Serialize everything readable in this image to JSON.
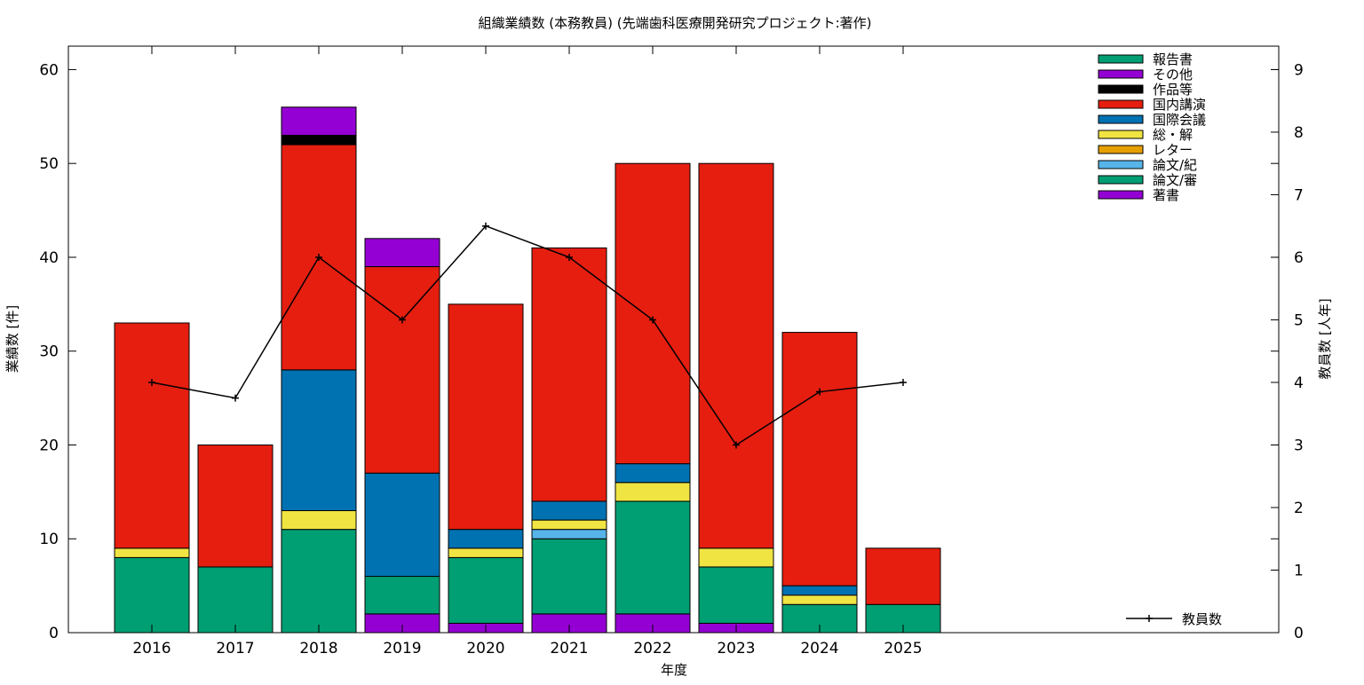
{
  "chart_data": {
    "type": "bar",
    "stacked": true,
    "title": "組織業績数 (本務教員) (先端歯科医療開発研究プロジェクト:著作)",
    "xlabel": "年度",
    "ylabel": "業績数 [件]",
    "y2label": "教員数 [人年]",
    "ylim": [
      0,
      62.5
    ],
    "y2lim": [
      0,
      9.375
    ],
    "yticks": [
      "0",
      "10",
      "20",
      "30",
      "40",
      "50",
      "60"
    ],
    "y2ticks": [
      "0",
      "1",
      "2",
      "3",
      "4",
      "5",
      "6",
      "7",
      "8",
      "9"
    ],
    "categories": [
      "2016",
      "2017",
      "2018",
      "2019",
      "2020",
      "2021",
      "2022",
      "2023",
      "2024",
      "2025"
    ],
    "series": [
      {
        "name": "著書",
        "color": "#9400d3",
        "values": [
          0,
          0,
          0,
          2,
          1,
          2,
          2,
          1,
          0,
          0
        ]
      },
      {
        "name": "論文/審",
        "color": "#009e73",
        "values": [
          8,
          7,
          11,
          4,
          7,
          8,
          12,
          6,
          3,
          3
        ]
      },
      {
        "name": "論文/紀",
        "color": "#56b4e9",
        "values": [
          0,
          0,
          0,
          0,
          0,
          1,
          0,
          0,
          0,
          0
        ]
      },
      {
        "name": "レター",
        "color": "#e69f00",
        "values": [
          0,
          0,
          0,
          0,
          0,
          0,
          0,
          0,
          0,
          0
        ]
      },
      {
        "name": "総・解",
        "color": "#f0e442",
        "values": [
          1,
          0,
          2,
          0,
          1,
          1,
          2,
          2,
          1,
          0
        ]
      },
      {
        "name": "国際会議",
        "color": "#0072b2",
        "values": [
          0,
          0,
          15,
          11,
          2,
          2,
          2,
          0,
          1,
          0
        ]
      },
      {
        "name": "国内講演",
        "color": "#e51e10",
        "values": [
          24,
          13,
          24,
          22,
          24,
          27,
          32,
          41,
          27,
          6
        ]
      },
      {
        "name": "作品等",
        "color": "#000000",
        "values": [
          0,
          0,
          1,
          0,
          0,
          0,
          0,
          0,
          0,
          0
        ]
      },
      {
        "name": "その他",
        "color": "#9400d3",
        "values": [
          0,
          0,
          3,
          3,
          0,
          0,
          0,
          0,
          0,
          0
        ]
      },
      {
        "name": "報告書",
        "color": "#009e73",
        "values": [
          0,
          0,
          0,
          0,
          0,
          0,
          0,
          0,
          0,
          0
        ]
      }
    ],
    "line_series": {
      "name": "教員数",
      "color": "#000000",
      "axis": "y2",
      "values": [
        4.0,
        3.75,
        6.0,
        5.0,
        6.5,
        6.0,
        5.0,
        3.0,
        3.85,
        4.0
      ]
    },
    "legend_placement": "top-right",
    "grid": false
  }
}
